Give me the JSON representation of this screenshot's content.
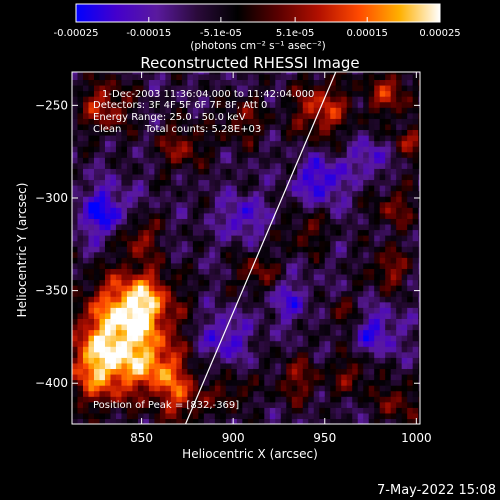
{
  "chart_data": {
    "type": "heatmap",
    "title": "Reconstructed RHESSI Image",
    "xlabel": "Heliocentric X (arcsec)",
    "ylabel": "Heliocentric Y (arcsec)",
    "xlim": [
      812,
      1002
    ],
    "ylim": [
      -422,
      -232
    ],
    "x_ticks": [
      850,
      900,
      950,
      1000
    ],
    "y_ticks": [
      -250,
      -300,
      -350,
      -400
    ],
    "colorbar": {
      "min": -0.00025,
      "max": 0.00025,
      "tick_values": [
        -0.00025,
        -0.00015,
        -5.1e-05,
        5.1e-05,
        0.00015,
        0.00025
      ],
      "tick_labels": [
        "-0.00025",
        "-0.00015",
        "-5.1e-05",
        "5.1e-05",
        "0.00015",
        "0.00025"
      ],
      "unit_label": "(photons cm⁻² s⁻¹ asec⁻²)",
      "palette": [
        "#0000ff",
        "#4400cc",
        "#5a1a9e",
        "#2a0a3a",
        "#000000",
        "#5a0000",
        "#b21000",
        "#ff4a00",
        "#ffb000",
        "#ffffff"
      ]
    },
    "annotations": {
      "time_range": "1-Dec-2003 11:36:04.000 to 11:42:04.000",
      "detectors": "Detectors: 3F 4F 5F 6F 7F 8F, Att 0",
      "energy_range": "Energy Range: 25.0 - 50.0 keV",
      "method": "Clean",
      "total_counts": "Total counts: 5.28E+03",
      "peak_position": "Position of Peak = [832,-369]"
    },
    "limb_line": {
      "points": [
        [
          874,
          -422
        ],
        [
          956,
          -232
        ]
      ]
    },
    "peak": {
      "x": 832,
      "y": -369
    },
    "bright_sources": [
      {
        "x": 840,
        "y": -370,
        "amp": 0.00024,
        "sigma": 18
      },
      {
        "x": 828,
        "y": -392,
        "amp": 0.00021,
        "sigma": 14
      },
      {
        "x": 850,
        "y": -355,
        "amp": 0.00018,
        "sigma": 12
      },
      {
        "x": 860,
        "y": -392,
        "amp": 0.00016,
        "sigma": 10
      },
      {
        "x": 872,
        "y": -408,
        "amp": 0.00015,
        "sigma": 10
      },
      {
        "x": 848,
        "y": -320,
        "amp": 0.00014,
        "sigma": 8
      },
      {
        "x": 830,
        "y": -250,
        "amp": 0.00016,
        "sigma": 10
      },
      {
        "x": 872,
        "y": -272,
        "amp": 0.00013,
        "sigma": 9
      },
      {
        "x": 905,
        "y": -258,
        "amp": 0.00011,
        "sigma": 9
      },
      {
        "x": 948,
        "y": -252,
        "amp": 0.00018,
        "sigma": 11
      },
      {
        "x": 985,
        "y": -243,
        "amp": 0.00015,
        "sigma": 9
      },
      {
        "x": 996,
        "y": -270,
        "amp": 0.00012,
        "sigma": 7
      },
      {
        "x": 940,
        "y": -318,
        "amp": 0.0001,
        "sigma": 8
      },
      {
        "x": 988,
        "y": -305,
        "amp": 0.00012,
        "sigma": 8
      },
      {
        "x": 985,
        "y": -338,
        "amp": 0.00013,
        "sigma": 8
      },
      {
        "x": 913,
        "y": -340,
        "amp": 0.00012,
        "sigma": 8
      },
      {
        "x": 935,
        "y": -398,
        "amp": 0.00012,
        "sigma": 9
      },
      {
        "x": 965,
        "y": -395,
        "amp": 0.00011,
        "sigma": 8
      },
      {
        "x": 990,
        "y": -410,
        "amp": 0.00012,
        "sigma": 8
      },
      {
        "x": 900,
        "y": -405,
        "amp": 0.0001,
        "sigma": 7
      },
      {
        "x": 960,
        "y": -363,
        "amp": 9e-05,
        "sigma": 7
      }
    ],
    "dim_regions": [
      {
        "x": 830,
        "y": -308,
        "amp": -0.00016,
        "sigma": 10
      },
      {
        "x": 948,
        "y": -290,
        "amp": -0.00015,
        "sigma": 9
      },
      {
        "x": 905,
        "y": -310,
        "amp": -0.00012,
        "sigma": 8
      },
      {
        "x": 895,
        "y": -375,
        "amp": -0.00012,
        "sigma": 9
      },
      {
        "x": 978,
        "y": -372,
        "amp": -0.00012,
        "sigma": 9
      },
      {
        "x": 975,
        "y": -278,
        "amp": -0.00011,
        "sigma": 7
      },
      {
        "x": 930,
        "y": -355,
        "amp": -0.0001,
        "sigma": 8
      }
    ]
  },
  "footer": {
    "datetime": "7-May-2022 15:08"
  }
}
